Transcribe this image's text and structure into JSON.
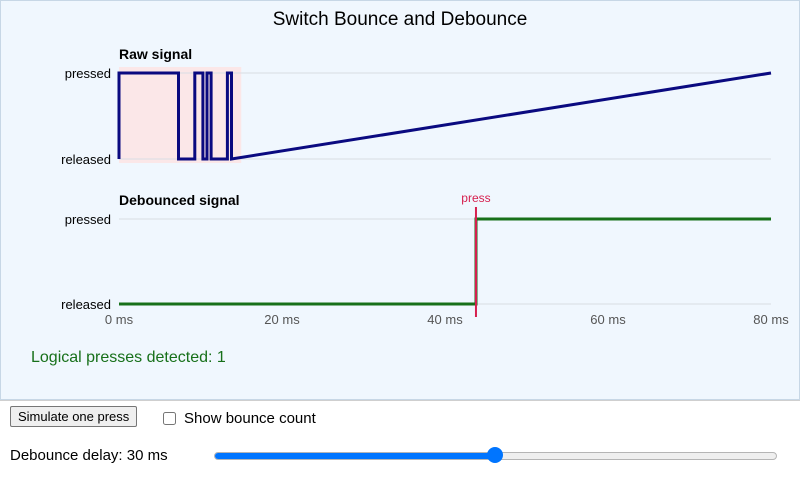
{
  "chart_data": [
    {
      "type": "line",
      "title": "Switch Bounce and Debounce",
      "panel_title": "Raw signal",
      "xlim": [
        0,
        80
      ],
      "ylim": [
        0,
        1
      ],
      "x_tick_values": [
        0,
        20,
        40,
        60,
        80
      ],
      "x_tick_labels": [
        "0 ms",
        "20 ms",
        "40 ms",
        "60 ms",
        "80 ms"
      ],
      "y_tick_values": [
        1,
        0
      ],
      "y_tick_labels": [
        "pressed",
        "released"
      ],
      "bounce_region": [
        0,
        15
      ],
      "series": [
        {
          "color": "#0a0a80",
          "x": [
            0,
            0,
            7.3,
            7.3,
            9.3,
            9.3,
            10.3,
            10.3,
            10.8,
            10.8,
            11.3,
            11.3,
            13.3,
            13.3,
            13.8,
            13.8,
            80
          ],
          "y": [
            0,
            1,
            1,
            0,
            0,
            1,
            1,
            0,
            0,
            1,
            1,
            0,
            0,
            1,
            1,
            0,
            1
          ]
        }
      ]
    },
    {
      "type": "line",
      "panel_title": "Debounced signal",
      "xlim": [
        0,
        80
      ],
      "ylim": [
        0,
        1
      ],
      "x_tick_values": [
        0,
        20,
        40,
        60,
        80
      ],
      "x_tick_labels": [
        "0 ms",
        "20 ms",
        "40 ms",
        "60 ms",
        "80 ms"
      ],
      "y_tick_values": [
        1,
        0
      ],
      "y_tick_labels": [
        "pressed",
        "released"
      ],
      "annotation": {
        "text": "press",
        "x": 43.8,
        "color": "#d6204f"
      },
      "series": [
        {
          "color": "#17701a",
          "x": [
            0,
            43.8,
            43.8,
            80
          ],
          "y": [
            0,
            0,
            1,
            1
          ]
        }
      ]
    }
  ],
  "status": {
    "text": "Logical presses detected: 1",
    "color": "#17701a"
  },
  "controls": {
    "simulate_label": "Simulate one press",
    "show_bounce_label": "Show bounce count",
    "show_bounce_checked": false,
    "delay_label": "Debounce delay: 30 ms",
    "delay_value": 30,
    "delay_min": 0,
    "delay_max": 60
  },
  "colors": {
    "panel_bg": "#f0f7fe",
    "bounce_shade": "#fbe7e8",
    "grid": "#d8dde3",
    "slider_accent": "#0075ff"
  }
}
